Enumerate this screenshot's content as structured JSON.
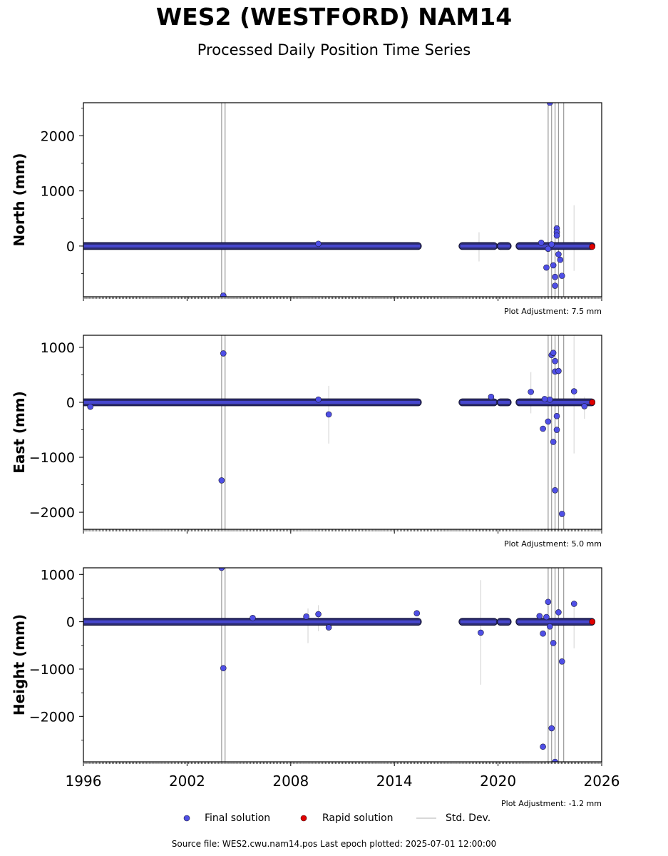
{
  "header": {
    "title": "WES2 (WESTFORD) NAM14",
    "subtitle": "Processed Daily Position Time Series"
  },
  "legend": {
    "final_label": "Final solution",
    "rapid_label": "Rapid solution",
    "std_label": "Std. Dev.",
    "final_color": "#4f4fe6",
    "rapid_color": "#e00000",
    "std_color": "#cccccc"
  },
  "footer": {
    "source": "Source file: WES2.cwu.nam14.pos  Last epoch plotted: 2025-07-01 12:00:00"
  },
  "chart_data": [
    {
      "type": "scatter",
      "ylabel": "North (mm)",
      "adjustment": "Plot Adjustment: 7.5 mm",
      "xlim": [
        1996,
        2026
      ],
      "ylim": [
        -920,
        2600
      ],
      "yticks": [
        0,
        1000,
        2000
      ],
      "ytick_labels": [
        "0",
        "1000",
        "2000"
      ],
      "grid": false,
      "band": [
        [
          1996.0,
          2015.4
        ],
        [
          2017.9,
          2019.8
        ],
        [
          2020.1,
          2020.6
        ],
        [
          2021.2,
          2025.45
        ]
      ],
      "series": [
        {
          "name": "Final solution",
          "points": [
            [
              2004.1,
              -900
            ],
            [
              2009.6,
              40
            ],
            [
              2022.5,
              60
            ],
            [
              2022.8,
              -390
            ],
            [
              2023.0,
              2600
            ],
            [
              2023.2,
              -350
            ],
            [
              2023.3,
              -560
            ],
            [
              2023.3,
              -720
            ],
            [
              2023.4,
              320
            ],
            [
              2023.4,
              250
            ],
            [
              2023.4,
              190
            ],
            [
              2023.5,
              -150
            ],
            [
              2023.6,
              -250
            ],
            [
              2023.7,
              -540
            ],
            [
              2023.1,
              30
            ],
            [
              2022.9,
              -50
            ]
          ]
        },
        {
          "name": "Rapid solution",
          "points": [
            [
              2025.45,
              -12
            ]
          ]
        }
      ],
      "std_dev": [
        [
          2004.0,
          -920,
          2600
        ],
        [
          2004.2,
          -920,
          2600
        ],
        [
          2018.9,
          -280,
          250
        ],
        [
          2022.9,
          -920,
          2600
        ],
        [
          2023.1,
          -920,
          2600
        ],
        [
          2023.3,
          -920,
          2600
        ],
        [
          2023.5,
          -920,
          2600
        ],
        [
          2023.8,
          -920,
          2600
        ],
        [
          2024.4,
          -450,
          740
        ]
      ]
    },
    {
      "type": "scatter",
      "ylabel": "East (mm)",
      "adjustment": "Plot Adjustment: 5.0 mm",
      "xlim": [
        1996,
        2026
      ],
      "ylim": [
        -2310,
        1220
      ],
      "yticks": [
        -2000,
        -1000,
        0,
        1000
      ],
      "ytick_labels": [
        "−2000",
        "−1000",
        "0",
        "1000"
      ],
      "grid": false,
      "band": [
        [
          1996.0,
          2015.4
        ],
        [
          2017.9,
          2019.8
        ],
        [
          2020.1,
          2020.6
        ],
        [
          2021.2,
          2025.45
        ]
      ],
      "series": [
        {
          "name": "Final solution",
          "points": [
            [
              1996.4,
              -80
            ],
            [
              2004.0,
              -1420
            ],
            [
              2004.1,
              890
            ],
            [
              2009.6,
              50
            ],
            [
              2010.2,
              -220
            ],
            [
              2019.6,
              100
            ],
            [
              2021.9,
              190
            ],
            [
              2022.6,
              -480
            ],
            [
              2022.9,
              -350
            ],
            [
              2023.1,
              860
            ],
            [
              2023.2,
              900
            ],
            [
              2023.3,
              750
            ],
            [
              2023.3,
              560
            ],
            [
              2023.2,
              -720
            ],
            [
              2023.3,
              -1600
            ],
            [
              2023.4,
              -500
            ],
            [
              2023.5,
              570
            ],
            [
              2023.7,
              -2030
            ],
            [
              2024.4,
              200
            ],
            [
              2025.0,
              -70
            ],
            [
              2023.0,
              50
            ],
            [
              2022.7,
              60
            ],
            [
              2023.4,
              -250
            ]
          ]
        },
        {
          "name": "Rapid solution",
          "points": [
            [
              2025.45,
              0
            ]
          ]
        }
      ],
      "std_dev": [
        [
          2004.0,
          -2310,
          1220
        ],
        [
          2004.2,
          -2310,
          1220
        ],
        [
          2010.2,
          -750,
          300
        ],
        [
          2021.9,
          -200,
          550
        ],
        [
          2022.9,
          -2310,
          1220
        ],
        [
          2023.1,
          -2310,
          1220
        ],
        [
          2023.3,
          -2310,
          1220
        ],
        [
          2023.5,
          -2310,
          1220
        ],
        [
          2023.8,
          -2310,
          1220
        ],
        [
          2024.4,
          -930,
          1220
        ],
        [
          2025.0,
          -300,
          100
        ]
      ]
    },
    {
      "type": "scatter",
      "ylabel": "Height (mm)",
      "adjustment": "Plot Adjustment: -1.2 mm",
      "xlim": [
        1996,
        2026
      ],
      "ylim": [
        -2960,
        1140
      ],
      "yticks": [
        -2000,
        -1000,
        0,
        1000
      ],
      "ytick_labels": [
        "−2000",
        "−1000",
        "0",
        "1000"
      ],
      "grid": false,
      "band": [
        [
          1996.0,
          2015.4
        ],
        [
          2017.9,
          2019.8
        ],
        [
          2020.1,
          2020.6
        ],
        [
          2021.2,
          2025.45
        ]
      ],
      "series": [
        {
          "name": "Final solution",
          "points": [
            [
              2004.0,
              1140
            ],
            [
              2004.1,
              -980
            ],
            [
              2005.8,
              80
            ],
            [
              2009.6,
              160
            ],
            [
              2008.9,
              110
            ],
            [
              2010.2,
              -120
            ],
            [
              2015.3,
              180
            ],
            [
              2019.0,
              -230
            ],
            [
              2022.6,
              -2640
            ],
            [
              2022.9,
              420
            ],
            [
              2023.1,
              -2250
            ],
            [
              2023.3,
              -2960
            ],
            [
              2023.7,
              -840
            ],
            [
              2024.4,
              380
            ],
            [
              2022.6,
              -250
            ],
            [
              2023.2,
              -450
            ],
            [
              2023.5,
              200
            ],
            [
              2022.8,
              100
            ],
            [
              2023.0,
              -100
            ],
            [
              2022.4,
              120
            ]
          ]
        },
        {
          "name": "Rapid solution",
          "points": [
            [
              2025.45,
              0
            ]
          ]
        }
      ],
      "std_dev": [
        [
          2004.0,
          -2960,
          1140
        ],
        [
          2004.2,
          -2960,
          1140
        ],
        [
          2009.0,
          -450,
          280
        ],
        [
          2009.6,
          -200,
          350
        ],
        [
          2019.0,
          -1330,
          880
        ],
        [
          2022.9,
          -2960,
          1140
        ],
        [
          2023.1,
          -2960,
          1140
        ],
        [
          2023.3,
          -2960,
          1140
        ],
        [
          2023.5,
          -2960,
          1140
        ],
        [
          2023.8,
          -2960,
          1140
        ],
        [
          2024.4,
          -560,
          450
        ]
      ]
    }
  ],
  "x_axis": {
    "ticks": [
      1996,
      2002,
      2008,
      2014,
      2020,
      2026
    ],
    "tick_labels": [
      "1996",
      "2002",
      "2008",
      "2014",
      "2020",
      "2026"
    ]
  }
}
